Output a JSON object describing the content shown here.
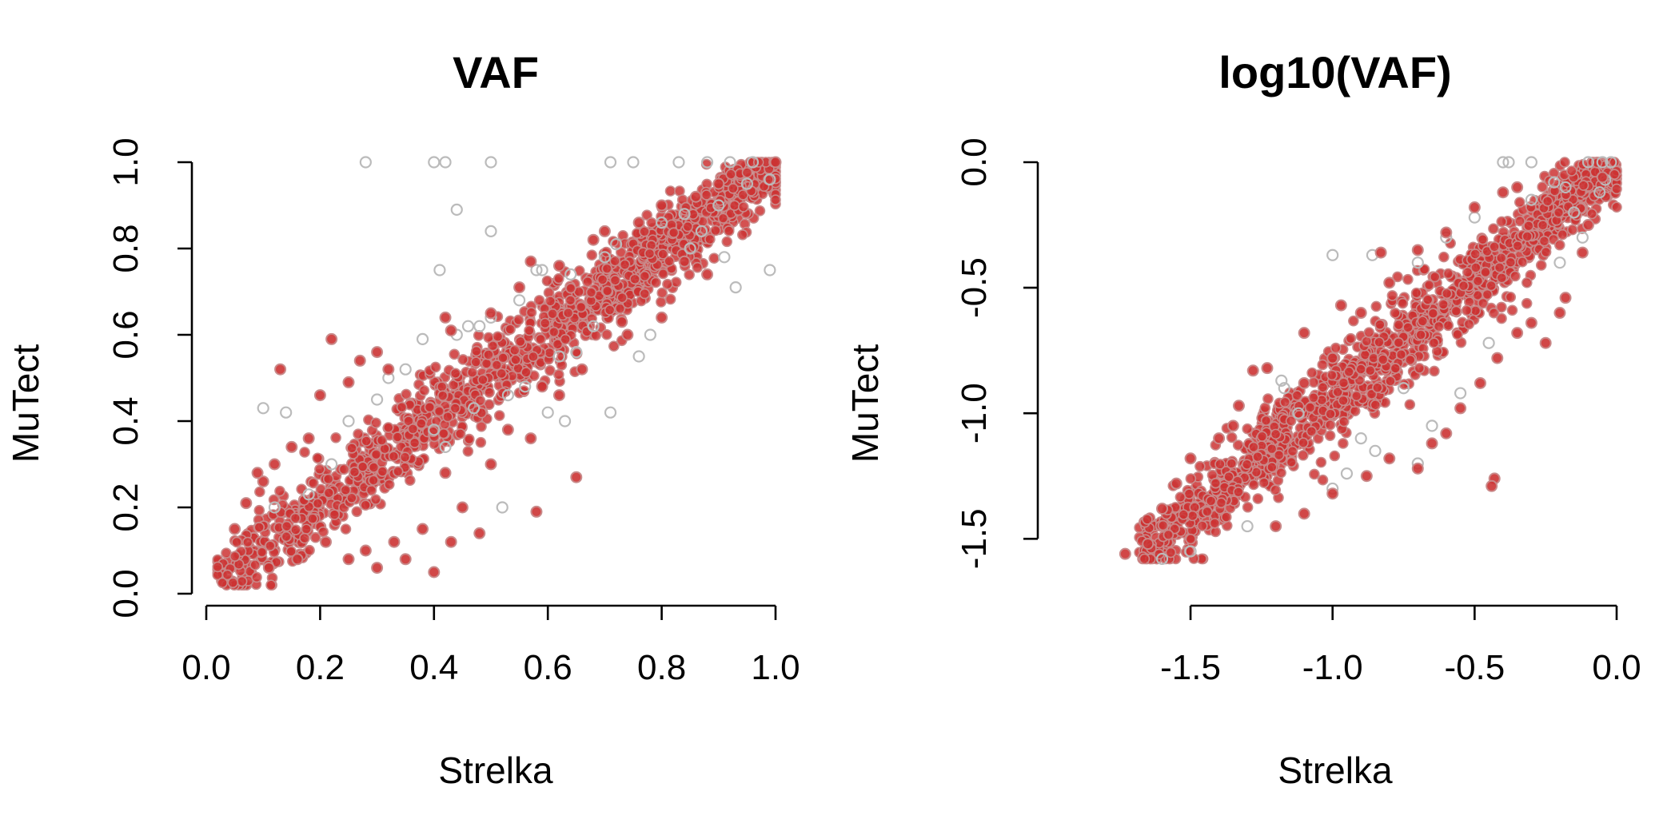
{
  "colors": {
    "strelka_mutect_shared": "#cc3333",
    "other_calls": "#bbbbbb"
  },
  "chart_data": [
    {
      "type": "scatter",
      "title": "VAF",
      "xlabel": "Strelka",
      "ylabel": "MuTect",
      "xlim": [
        0.0,
        1.0
      ],
      "ylim": [
        0.0,
        1.0
      ],
      "xticks": [
        0.0,
        0.2,
        0.4,
        0.6,
        0.8,
        1.0
      ],
      "yticks": [
        0.0,
        0.2,
        0.4,
        0.6,
        0.8,
        1.0
      ],
      "xtick_labels": [
        "0.0",
        "0.2",
        "0.4",
        "0.6",
        "0.8",
        "1.0"
      ],
      "ytick_labels": [
        "0.0",
        "0.2",
        "0.4",
        "0.6",
        "0.8",
        "1.0"
      ],
      "grid": false,
      "legend": "none",
      "series": [
        {
          "color": "#bbbbbb",
          "marker": "open-circle",
          "points": [
            [
              0.28,
              1.0
            ],
            [
              0.4,
              1.0
            ],
            [
              0.42,
              1.0
            ],
            [
              0.5,
              1.0
            ],
            [
              0.71,
              1.0
            ],
            [
              0.75,
              1.0
            ],
            [
              0.83,
              1.0
            ],
            [
              0.88,
              1.0
            ],
            [
              0.92,
              1.0
            ],
            [
              0.96,
              1.0
            ],
            [
              0.44,
              0.89
            ],
            [
              0.5,
              0.84
            ],
            [
              0.41,
              0.75
            ],
            [
              0.99,
              0.75
            ],
            [
              0.93,
              0.71
            ],
            [
              0.91,
              0.78
            ],
            [
              0.1,
              0.43
            ],
            [
              0.14,
              0.42
            ],
            [
              0.44,
              0.6
            ],
            [
              0.46,
              0.62
            ],
            [
              0.48,
              0.62
            ],
            [
              0.5,
              0.64
            ],
            [
              0.58,
              0.75
            ],
            [
              0.59,
              0.75
            ],
            [
              0.64,
              0.74
            ],
            [
              0.7,
              0.78
            ],
            [
              0.72,
              0.81
            ],
            [
              0.8,
              0.86
            ],
            [
              0.85,
              0.8
            ],
            [
              0.9,
              0.9
            ],
            [
              0.95,
              0.95
            ],
            [
              0.99,
              0.96
            ],
            [
              0.6,
              0.42
            ],
            [
              0.63,
              0.4
            ],
            [
              0.71,
              0.42
            ],
            [
              0.76,
              0.55
            ],
            [
              0.78,
              0.6
            ],
            [
              0.56,
              0.48
            ],
            [
              0.52,
              0.2
            ],
            [
              0.42,
              0.34
            ],
            [
              0.4,
              0.38
            ],
            [
              0.47,
              0.43
            ],
            [
              0.35,
              0.52
            ],
            [
              0.3,
              0.45
            ],
            [
              0.38,
              0.59
            ],
            [
              0.22,
              0.3
            ],
            [
              0.18,
              0.23
            ],
            [
              0.12,
              0.2
            ],
            [
              0.25,
              0.4
            ],
            [
              0.32,
              0.5
            ],
            [
              0.55,
              0.68
            ],
            [
              0.65,
              0.56
            ],
            [
              0.68,
              0.62
            ],
            [
              0.84,
              0.88
            ],
            [
              0.87,
              0.84
            ],
            [
              0.62,
              0.55
            ],
            [
              0.53,
              0.46
            ]
          ]
        },
        {
          "color": "#cc3333",
          "marker": "filled-circle",
          "points": [
            [
              0.22,
              0.59
            ],
            [
              0.13,
              0.52
            ],
            [
              0.2,
              0.46
            ],
            [
              0.25,
              0.49
            ],
            [
              0.27,
              0.54
            ],
            [
              0.3,
              0.56
            ],
            [
              0.32,
              0.52
            ],
            [
              0.42,
              0.64
            ],
            [
              0.43,
              0.61
            ],
            [
              0.5,
              0.65
            ],
            [
              0.55,
              0.71
            ],
            [
              0.57,
              0.77
            ],
            [
              0.62,
              0.76
            ],
            [
              0.68,
              0.82
            ],
            [
              0.7,
              0.84
            ],
            [
              0.76,
              0.86
            ],
            [
              0.8,
              0.9
            ],
            [
              0.86,
              0.92
            ],
            [
              0.9,
              0.95
            ],
            [
              1.0,
              1.0
            ],
            [
              0.88,
              0.74
            ],
            [
              0.84,
              0.77
            ],
            [
              0.73,
              0.63
            ],
            [
              0.8,
              0.64
            ],
            [
              0.74,
              0.6
            ],
            [
              0.66,
              0.52
            ],
            [
              0.62,
              0.46
            ],
            [
              0.59,
              0.48
            ],
            [
              0.65,
              0.27
            ],
            [
              0.58,
              0.19
            ],
            [
              0.48,
              0.14
            ],
            [
              0.4,
              0.05
            ],
            [
              0.35,
              0.08
            ],
            [
              0.3,
              0.06
            ],
            [
              0.43,
              0.12
            ],
            [
              0.45,
              0.2
            ],
            [
              0.5,
              0.3
            ],
            [
              0.53,
              0.38
            ],
            [
              0.57,
              0.36
            ],
            [
              0.33,
              0.12
            ],
            [
              0.28,
              0.1
            ],
            [
              0.25,
              0.08
            ],
            [
              0.38,
              0.15
            ],
            [
              0.42,
              0.28
            ],
            [
              0.1,
              0.26
            ],
            [
              0.07,
              0.21
            ],
            [
              0.12,
              0.3
            ],
            [
              0.15,
              0.34
            ],
            [
              0.18,
              0.36
            ],
            [
              0.09,
              0.28
            ],
            [
              0.05,
              0.15
            ],
            [
              0.11,
              0.06
            ],
            [
              0.16,
              0.08
            ],
            [
              0.21,
              0.12
            ]
          ]
        }
      ],
      "shared_density_band": {
        "x": [
          0.02,
          1.0
        ],
        "y": [
          0.02,
          1.0
        ],
        "half_width": 0.04
      }
    },
    {
      "type": "scatter",
      "title": "log10(VAF)",
      "xlabel": "Strelka",
      "ylabel": "MuTect",
      "xlim": [
        -1.7,
        0.0
      ],
      "ylim": [
        -1.55,
        0.0
      ],
      "xticks": [
        -1.5,
        -1.0,
        -0.5,
        0.0
      ],
      "yticks": [
        -1.5,
        -1.0,
        -0.5,
        0.0
      ],
      "xtick_labels": [
        "-1.5",
        "-1.0",
        "-0.5",
        "0.0"
      ],
      "ytick_labels": [
        "-1.5",
        "-1.0",
        "-0.5",
        "0.0"
      ],
      "grid": false,
      "legend": "none",
      "series": [
        {
          "color": "#bbbbbb",
          "marker": "open-circle",
          "points": [
            [
              -0.4,
              0.0
            ],
            [
              -0.38,
              0.0
            ],
            [
              -0.3,
              0.0
            ],
            [
              -0.1,
              0.0
            ],
            [
              -0.05,
              0.0
            ],
            [
              -0.02,
              0.0
            ],
            [
              -0.04,
              -0.07
            ],
            [
              -0.06,
              -0.12
            ],
            [
              -0.18,
              -0.1
            ],
            [
              -0.22,
              -0.08
            ],
            [
              -0.3,
              -0.15
            ],
            [
              -1.0,
              -0.37
            ],
            [
              -0.86,
              -0.37
            ],
            [
              -1.17,
              -0.9
            ],
            [
              -1.18,
              -0.87
            ],
            [
              -0.6,
              -0.3
            ],
            [
              -0.7,
              -0.4
            ],
            [
              -0.5,
              -0.22
            ],
            [
              -0.15,
              -0.2
            ],
            [
              -0.12,
              -0.3
            ],
            [
              -0.2,
              -0.4
            ],
            [
              -0.9,
              -1.1
            ],
            [
              -0.85,
              -1.15
            ],
            [
              -0.7,
              -1.2
            ],
            [
              -0.65,
              -1.05
            ],
            [
              -0.95,
              -1.24
            ],
            [
              -1.3,
              -1.45
            ],
            [
              -1.5,
              -1.55
            ],
            [
              -1.6,
              -1.58
            ],
            [
              -1.12,
              -1.0
            ],
            [
              -0.75,
              -0.9
            ],
            [
              -0.45,
              -0.72
            ],
            [
              -0.55,
              -0.92
            ],
            [
              -1.0,
              -1.3
            ]
          ]
        },
        {
          "color": "#cc3333",
          "marker": "filled-circle",
          "points": [
            [
              -0.83,
              -0.36
            ],
            [
              -0.97,
              -0.57
            ],
            [
              -1.1,
              -0.68
            ],
            [
              -1.23,
              -0.82
            ],
            [
              -1.28,
              -0.83
            ],
            [
              -1.33,
              -0.97
            ],
            [
              -1.35,
              -1.05
            ],
            [
              -1.4,
              -1.1
            ],
            [
              -1.5,
              -1.18
            ],
            [
              -1.55,
              -1.28
            ],
            [
              -1.6,
              -1.38
            ],
            [
              -1.73,
              -1.56
            ],
            [
              -1.65,
              -1.52
            ],
            [
              -1.1,
              -0.88
            ],
            [
              -1.0,
              -0.78
            ],
            [
              -0.9,
              -0.6
            ],
            [
              -0.8,
              -0.48
            ],
            [
              -0.7,
              -0.35
            ],
            [
              -0.6,
              -0.28
            ],
            [
              -0.5,
              -0.18
            ],
            [
              -0.4,
              -0.12
            ],
            [
              -0.35,
              -0.1
            ],
            [
              -0.05,
              -0.06
            ],
            [
              -0.1,
              -0.25
            ],
            [
              -0.12,
              -0.36
            ],
            [
              -0.18,
              -0.54
            ],
            [
              -0.2,
              -0.6
            ],
            [
              -0.25,
              -0.72
            ],
            [
              -0.3,
              -0.64
            ],
            [
              -0.35,
              -0.68
            ],
            [
              -0.42,
              -0.78
            ],
            [
              -0.48,
              -0.88
            ],
            [
              -0.55,
              -0.98
            ],
            [
              -0.6,
              -1.08
            ],
            [
              -0.65,
              -1.12
            ],
            [
              -0.7,
              -1.22
            ],
            [
              -0.43,
              -1.26
            ],
            [
              -0.44,
              -1.29
            ],
            [
              -1.0,
              -1.32
            ],
            [
              -1.1,
              -1.4
            ],
            [
              -1.2,
              -1.45
            ],
            [
              -0.8,
              -1.18
            ],
            [
              -0.88,
              -1.25
            ]
          ]
        }
      ],
      "shared_density_band": {
        "x": [
          -1.68,
          0.0
        ],
        "y": [
          -1.58,
          0.0
        ],
        "half_width": 0.07
      }
    }
  ]
}
